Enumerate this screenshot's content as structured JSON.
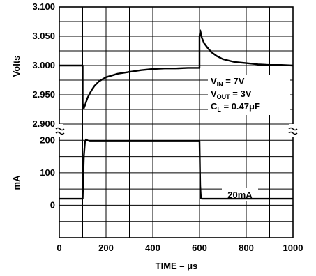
{
  "chart_data": [
    {
      "type": "line",
      "panel": "voltage",
      "ylabel": "Volts",
      "ylim": [
        2.9,
        3.1
      ],
      "yticks": [
        "3.100",
        "3.050",
        "3.000",
        "2.950",
        "2.900"
      ],
      "grid": true,
      "annotations": {
        "vin": {
          "base": "V",
          "sub": "IN",
          "rest": " = 7V"
        },
        "vout": {
          "base": "V",
          "sub": "OUT",
          "rest": " = 3V"
        },
        "cl": {
          "base": "C",
          "sub": "L",
          "rest": " = 0.47μF"
        }
      },
      "series": [
        {
          "x": [
            0,
            100,
            100,
            105,
            110,
            115,
            120,
            130,
            140,
            150,
            170,
            200,
            250,
            300,
            350,
            400,
            450,
            500,
            550,
            600,
            600,
            603,
            610,
            620,
            635,
            650,
            675,
            700,
            750,
            800,
            850,
            900,
            950,
            1000
          ],
          "y": [
            3.0,
            3.0,
            2.935,
            2.927,
            2.932,
            2.938,
            2.944,
            2.952,
            2.959,
            2.965,
            2.973,
            2.98,
            2.986,
            2.989,
            2.992,
            2.994,
            2.995,
            2.995,
            2.996,
            2.996,
            3.05,
            3.06,
            3.047,
            3.038,
            3.03,
            3.023,
            3.016,
            3.011,
            3.006,
            3.004,
            3.002,
            3.001,
            3.001,
            3.0
          ]
        }
      ]
    },
    {
      "type": "line",
      "panel": "current",
      "ylabel": "mA",
      "xlabel": "TIME – μs",
      "xlim": [
        0,
        1000
      ],
      "ylim": [
        -100,
        250
      ],
      "xticks": [
        "0",
        "200",
        "400",
        "600",
        "800",
        "1000"
      ],
      "yticks": [
        "200",
        "100",
        "0"
      ],
      "grid": true,
      "annotations": {
        "low_level": "20mA"
      },
      "series": [
        {
          "x": [
            0,
            95,
            100,
            105,
            110,
            115,
            120,
            130,
            200,
            300,
            400,
            500,
            595,
            600,
            603,
            606,
            610,
            700,
            800,
            900,
            1000
          ],
          "y": [
            20,
            20,
            20,
            150,
            195,
            203,
            200,
            197,
            197,
            197,
            197,
            197,
            197,
            197,
            60,
            22,
            20,
            20,
            20,
            20,
            20
          ]
        }
      ]
    }
  ]
}
